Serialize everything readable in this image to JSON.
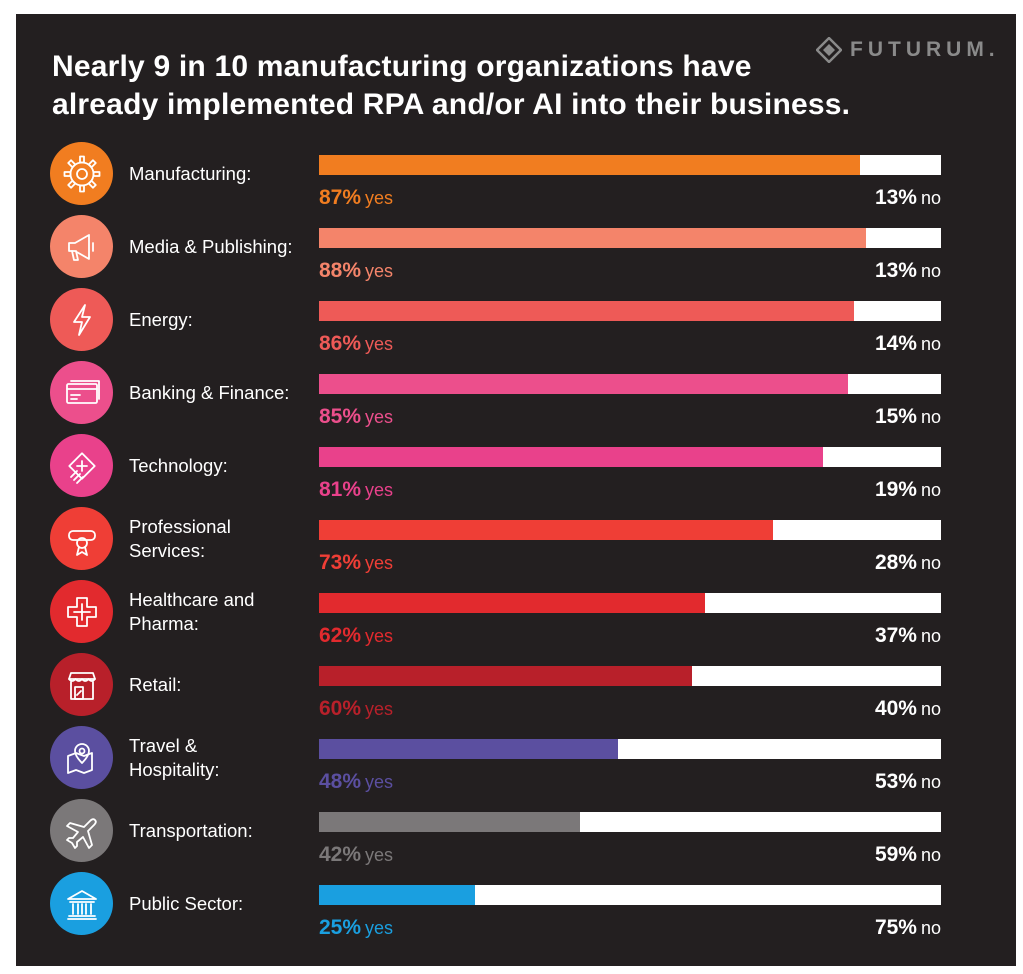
{
  "title_line1": "Nearly 9 in 10 manufacturing organizations have",
  "title_line2": "already implemented RPA and/or AI into their business.",
  "logo_text": "FUTURUM.",
  "yes_word": "yes",
  "no_word": "no",
  "chart_data": {
    "type": "bar",
    "orientation": "horizontal",
    "stacked": true,
    "title": "Nearly 9 in 10 manufacturing organizations have already implemented RPA and/or AI into their business.",
    "xlim": [
      0,
      100
    ],
    "unit": "%",
    "series": [
      {
        "name": "yes",
        "values": [
          87,
          88,
          86,
          85,
          81,
          73,
          62,
          60,
          48,
          42,
          25
        ]
      },
      {
        "name": "no",
        "values": [
          13,
          13,
          14,
          15,
          19,
          28,
          37,
          40,
          53,
          59,
          75
        ]
      }
    ],
    "items": [
      {
        "label_lines": [
          "Manufacturing:"
        ],
        "yes": 87,
        "no": 13,
        "yes_text": "87%",
        "no_text": "13%",
        "color": "#f17d20",
        "icon": "gear-icon"
      },
      {
        "label_lines": [
          "Media & Publishing:"
        ],
        "yes": 88,
        "no": 13,
        "yes_text": "88%",
        "no_text": "13%",
        "color": "#f4846a",
        "icon": "megaphone-icon"
      },
      {
        "label_lines": [
          "Energy:"
        ],
        "yes": 86,
        "no": 14,
        "yes_text": "86%",
        "no_text": "14%",
        "color": "#ee5a57",
        "icon": "lightning-icon"
      },
      {
        "label_lines": [
          "Banking & Finance:"
        ],
        "yes": 85,
        "no": 15,
        "yes_text": "85%",
        "no_text": "15%",
        "color": "#ec4f8c",
        "icon": "credit-card-icon"
      },
      {
        "label_lines": [
          "Technology:"
        ],
        "yes": 81,
        "no": 19,
        "yes_text": "81%",
        "no_text": "19%",
        "color": "#e9418b",
        "icon": "microchip-icon"
      },
      {
        "label_lines": [
          "Professional",
          "Services:"
        ],
        "yes": 73,
        "no": 28,
        "yes_text": "73%",
        "no_text": "28%",
        "color": "#ef3e36",
        "icon": "diploma-icon"
      },
      {
        "label_lines": [
          "Healthcare and",
          "Pharma:"
        ],
        "yes": 62,
        "no": 37,
        "yes_text": "62%",
        "no_text": "37%",
        "color": "#e22a2e",
        "icon": "medical-cross-icon"
      },
      {
        "label_lines": [
          "Retail:"
        ],
        "yes": 60,
        "no": 40,
        "yes_text": "60%",
        "no_text": "40%",
        "color": "#b8202a",
        "icon": "storefront-icon"
      },
      {
        "label_lines": [
          "Travel &",
          "Hospitality:"
        ],
        "yes": 48,
        "no": 53,
        "yes_text": "48%",
        "no_text": "53%",
        "color": "#5b4fa0",
        "icon": "map-pin-icon"
      },
      {
        "label_lines": [
          "Transportation:"
        ],
        "yes": 42,
        "no": 59,
        "yes_text": "42%",
        "no_text": "59%",
        "color": "#7b7879",
        "icon": "airplane-icon"
      },
      {
        "label_lines": [
          "Public Sector:"
        ],
        "yes": 25,
        "no": 75,
        "yes_text": "25%",
        "no_text": "75%",
        "color": "#1a9fe0",
        "icon": "government-building-icon"
      }
    ]
  }
}
